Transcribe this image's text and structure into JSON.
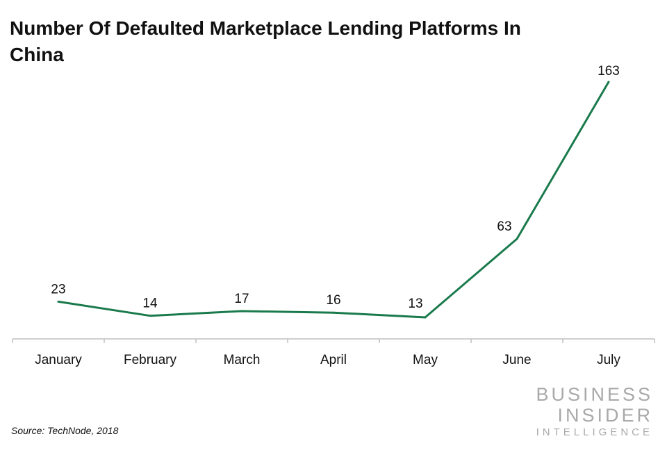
{
  "chart_data": {
    "type": "line",
    "title": "Number Of Defaulted Marketplace Lending Platforms In China",
    "xlabel": "",
    "ylabel": "",
    "categories": [
      "January",
      "February",
      "March",
      "April",
      "May",
      "June",
      "July"
    ],
    "series": [
      {
        "values": [
          23,
          14,
          17,
          16,
          13,
          63,
          163
        ]
      }
    ],
    "data_labels": [
      "23",
      "14",
      "17",
      "16",
      "13",
      "63",
      "163"
    ],
    "ylim": [
      0,
      170
    ],
    "grid": false,
    "legend": "none",
    "line_color": "#1a7a4c",
    "axis_color": "#bfbfbf"
  },
  "source": "Source: TechNode, 2018",
  "brand": {
    "line1": "BUSINESS",
    "line2": "INSIDER",
    "line3": "INTELLIGENCE"
  }
}
